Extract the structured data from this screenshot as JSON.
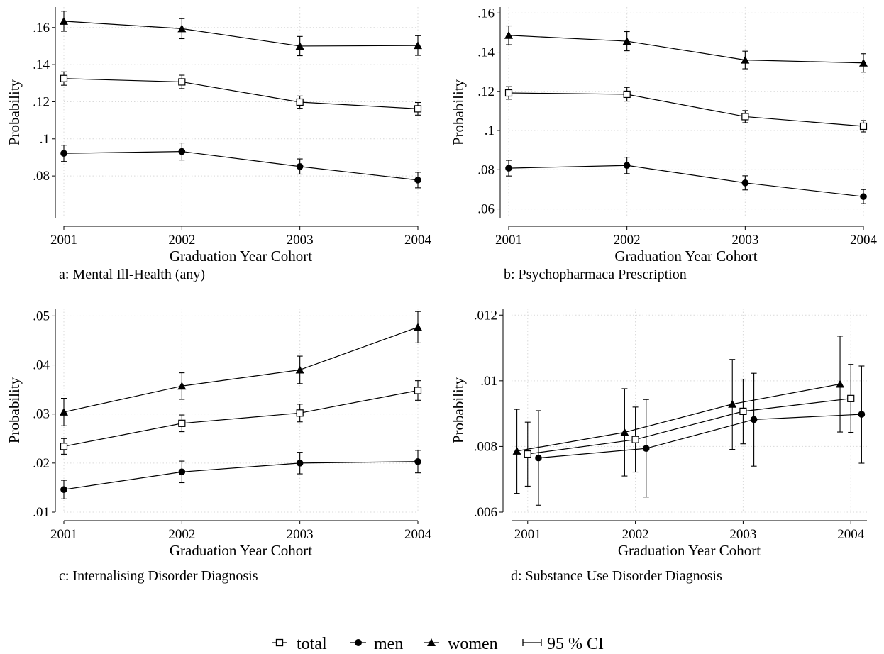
{
  "figure": {
    "legend": {
      "total": "total",
      "men": "men",
      "women": "women",
      "ci": "95 % CI"
    }
  },
  "chart_data": [
    {
      "type": "line",
      "caption": "a: Mental Ill-Health (any)",
      "xlabel": "Graduation Year Cohort",
      "ylabel": "Probability",
      "x": [
        2001,
        2002,
        2003,
        2004
      ],
      "xlim": [
        2001,
        2004
      ],
      "ylim": [
        0.0575,
        0.171
      ],
      "yticks": [
        0.08,
        0.1,
        0.12,
        0.14,
        0.16
      ],
      "ytick_labels": [
        ".08",
        ".1",
        ".12",
        ".14",
        ".16"
      ],
      "grid": true,
      "series": [
        {
          "name": "total",
          "marker": "square",
          "values": [
            0.1325,
            0.1307,
            0.1198,
            0.1162
          ],
          "ci_low": [
            0.1289,
            0.1271,
            0.1165,
            0.1128
          ],
          "ci_high": [
            0.1361,
            0.1343,
            0.1231,
            0.1196
          ]
        },
        {
          "name": "men",
          "marker": "circle",
          "values": [
            0.0922,
            0.0932,
            0.0851,
            0.0778
          ],
          "ci_low": [
            0.0878,
            0.0886,
            0.081,
            0.0736
          ],
          "ci_high": [
            0.0966,
            0.0978,
            0.0892,
            0.082
          ]
        },
        {
          "name": "women",
          "marker": "triangle",
          "values": [
            0.1634,
            0.1594,
            0.15,
            0.1503
          ],
          "ci_low": [
            0.158,
            0.154,
            0.1448,
            0.145
          ],
          "ci_high": [
            0.1688,
            0.1648,
            0.1552,
            0.1556
          ]
        }
      ]
    },
    {
      "type": "line",
      "caption": "b: Psychopharmaca Prescription",
      "xlabel": "Graduation Year Cohort",
      "ylabel": "Probability",
      "x": [
        2001,
        2002,
        2003,
        2004
      ],
      "xlim": [
        2001,
        2004
      ],
      "ylim": [
        0.0555,
        0.163
      ],
      "yticks": [
        0.06,
        0.08,
        0.1,
        0.12,
        0.14,
        0.16
      ],
      "ytick_labels": [
        ".06",
        ".08",
        ".1",
        ".12",
        ".14",
        ".16"
      ],
      "grid": true,
      "series": [
        {
          "name": "total",
          "marker": "square",
          "values": [
            0.1192,
            0.1185,
            0.1071,
            0.1022
          ],
          "ci_low": [
            0.116,
            0.115,
            0.104,
            0.0993
          ],
          "ci_high": [
            0.1224,
            0.122,
            0.1102,
            0.1051
          ]
        },
        {
          "name": "men",
          "marker": "circle",
          "values": [
            0.0808,
            0.0822,
            0.0733,
            0.0663
          ],
          "ci_low": [
            0.0768,
            0.078,
            0.0697,
            0.0627
          ],
          "ci_high": [
            0.0848,
            0.0864,
            0.0769,
            0.0699
          ]
        },
        {
          "name": "women",
          "marker": "triangle",
          "values": [
            0.1486,
            0.1456,
            0.136,
            0.1345
          ],
          "ci_low": [
            0.1438,
            0.1407,
            0.1315,
            0.1298
          ],
          "ci_high": [
            0.1534,
            0.1505,
            0.1405,
            0.1392
          ]
        }
      ]
    },
    {
      "type": "line",
      "caption": "c: Internalising Disorder Diagnosis",
      "xlabel": "Graduation Year Cohort",
      "ylabel": "Probability",
      "x": [
        2001,
        2002,
        2003,
        2004
      ],
      "xlim": [
        2001,
        2004
      ],
      "ylim": [
        0.01,
        0.0515
      ],
      "yticks": [
        0.01,
        0.02,
        0.03,
        0.04,
        0.05
      ],
      "ytick_labels": [
        ".01",
        ".02",
        ".03",
        ".04",
        ".05"
      ],
      "grid": true,
      "series": [
        {
          "name": "total",
          "marker": "square",
          "values": [
            0.0234,
            0.0281,
            0.0302,
            0.0348
          ],
          "ci_low": [
            0.0218,
            0.0264,
            0.0284,
            0.0328
          ],
          "ci_high": [
            0.025,
            0.0298,
            0.032,
            0.0368
          ]
        },
        {
          "name": "men",
          "marker": "circle",
          "values": [
            0.0146,
            0.0182,
            0.02,
            0.0203
          ],
          "ci_low": [
            0.0127,
            0.016,
            0.0178,
            0.018
          ],
          "ci_high": [
            0.0165,
            0.0204,
            0.0222,
            0.0226
          ]
        },
        {
          "name": "women",
          "marker": "triangle",
          "values": [
            0.0304,
            0.0357,
            0.039,
            0.0477
          ],
          "ci_low": [
            0.0276,
            0.033,
            0.0362,
            0.0445
          ],
          "ci_high": [
            0.0332,
            0.0384,
            0.0418,
            0.0509
          ]
        }
      ]
    },
    {
      "type": "line",
      "caption": "d: Substance Use Disorder Diagnosis",
      "xlabel": "Graduation Year Cohort",
      "ylabel": "Probability",
      "x": [
        2001,
        2002,
        2003,
        2004
      ],
      "xlim": [
        2000.85,
        2004.15
      ],
      "ylim": [
        0.006,
        0.0122
      ],
      "yticks": [
        0.006,
        0.008,
        0.01,
        0.012
      ],
      "ytick_labels": [
        ".006",
        ".008",
        ".01",
        ".012"
      ],
      "grid": true,
      "series": [
        {
          "name": "total",
          "marker": "square",
          "dx": 0,
          "values": [
            0.00777,
            0.00821,
            0.00907,
            0.00946
          ],
          "ci_low": [
            0.00679,
            0.00722,
            0.00808,
            0.00843
          ],
          "ci_high": [
            0.00874,
            0.0092,
            0.01005,
            0.0105
          ]
        },
        {
          "name": "men",
          "marker": "circle",
          "dx": 0.1,
          "values": [
            0.00765,
            0.00794,
            0.00882,
            0.00898
          ],
          "ci_low": [
            0.00621,
            0.00646,
            0.0074,
            0.00749
          ],
          "ci_high": [
            0.00909,
            0.00943,
            0.01023,
            0.01045
          ]
        },
        {
          "name": "women",
          "marker": "triangle",
          "dx": -0.1,
          "values": [
            0.00786,
            0.00843,
            0.00929,
            0.0099
          ],
          "ci_low": [
            0.00657,
            0.0071,
            0.00791,
            0.00844
          ],
          "ci_high": [
            0.00913,
            0.00976,
            0.01065,
            0.01136
          ]
        }
      ]
    }
  ]
}
